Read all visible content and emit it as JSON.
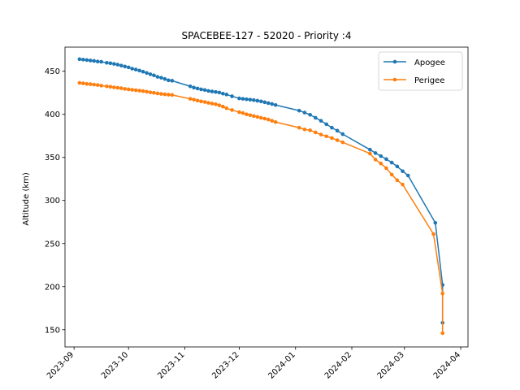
{
  "chart_data": {
    "type": "line",
    "title": "SPACEBEE-127 - 52020 - Priority :4",
    "xlabel": "",
    "ylabel": "Altitude (km)",
    "x_type": "date",
    "xlim": [
      "2023-08-27",
      "2024-04-05"
    ],
    "ylim": [
      130,
      478
    ],
    "x_ticks": [
      "2023-09",
      "2023-10",
      "2023-11",
      "2023-12",
      "2024-01",
      "2024-02",
      "2024-03",
      "2024-04"
    ],
    "y_ticks": [
      150,
      200,
      250,
      300,
      350,
      400,
      450
    ],
    "grid": false,
    "legend_position": "top-right",
    "series": [
      {
        "name": "Apogee",
        "color": "#1f77b4",
        "points": [
          [
            "2023-09-04",
            464
          ],
          [
            "2023-09-06",
            463.5
          ],
          [
            "2023-09-08",
            463
          ],
          [
            "2023-09-10",
            462.5
          ],
          [
            "2023-09-12",
            462
          ],
          [
            "2023-09-14",
            461.3
          ],
          [
            "2023-09-16",
            461
          ],
          [
            "2023-09-19",
            459.8
          ],
          [
            "2023-09-21",
            459.3
          ],
          [
            "2023-09-23",
            458.5
          ],
          [
            "2023-09-25",
            457.7
          ],
          [
            "2023-09-27",
            456.6
          ],
          [
            "2023-09-29",
            455.5
          ],
          [
            "2023-10-01",
            454.5
          ],
          [
            "2023-10-03",
            453
          ],
          [
            "2023-10-05",
            452
          ],
          [
            "2023-10-07",
            450.8
          ],
          [
            "2023-10-09",
            449.5
          ],
          [
            "2023-10-11",
            448
          ],
          [
            "2023-10-13",
            446.5
          ],
          [
            "2023-10-15",
            445.2
          ],
          [
            "2023-10-17",
            443.5
          ],
          [
            "2023-10-19",
            442.5
          ],
          [
            "2023-10-21",
            441
          ],
          [
            "2023-10-23",
            439.5
          ],
          [
            "2023-10-25",
            439
          ],
          [
            "2023-11-04",
            432.5
          ],
          [
            "2023-11-06",
            431
          ],
          [
            "2023-11-08",
            430
          ],
          [
            "2023-11-10",
            429
          ],
          [
            "2023-11-12",
            428.2
          ],
          [
            "2023-11-14",
            427.2
          ],
          [
            "2023-11-16",
            426.5
          ],
          [
            "2023-11-18",
            426
          ],
          [
            "2023-11-20",
            425.3
          ],
          [
            "2023-11-22",
            424
          ],
          [
            "2023-11-24",
            423
          ],
          [
            "2023-11-27",
            421
          ],
          [
            "2023-12-01",
            418.5
          ],
          [
            "2023-12-03",
            418
          ],
          [
            "2023-12-05",
            417.5
          ],
          [
            "2023-12-07",
            417
          ],
          [
            "2023-12-09",
            416.5
          ],
          [
            "2023-12-11",
            415.8
          ],
          [
            "2023-12-13",
            415
          ],
          [
            "2023-12-15",
            414
          ],
          [
            "2023-12-17",
            413
          ],
          [
            "2023-12-19",
            412
          ],
          [
            "2023-12-21",
            410.8
          ],
          [
            "2024-01-03",
            404.3
          ],
          [
            "2024-01-06",
            402
          ],
          [
            "2024-01-09",
            399.5
          ],
          [
            "2024-01-12",
            396
          ],
          [
            "2024-01-15",
            392.5
          ],
          [
            "2024-01-18",
            388.5
          ],
          [
            "2024-01-21",
            384.5
          ],
          [
            "2024-01-24",
            381
          ],
          [
            "2024-01-27",
            377
          ],
          [
            "2024-02-11",
            359
          ],
          [
            "2024-02-14",
            355
          ],
          [
            "2024-02-17",
            351.5
          ],
          [
            "2024-02-20",
            348
          ],
          [
            "2024-02-23",
            344
          ],
          [
            "2024-02-26",
            339.5
          ],
          [
            "2024-02-29",
            334
          ],
          [
            "2024-03-03",
            329
          ],
          [
            "2024-03-18",
            274
          ],
          [
            "2024-03-22",
            202
          ],
          [
            "2024-03-22",
            158
          ]
        ]
      },
      {
        "name": "Perigee",
        "color": "#ff7f0e",
        "points": [
          [
            "2023-09-04",
            436.5
          ],
          [
            "2023-09-06",
            436
          ],
          [
            "2023-09-08",
            435.3
          ],
          [
            "2023-09-10",
            435
          ],
          [
            "2023-09-12",
            434.5
          ],
          [
            "2023-09-14",
            434
          ],
          [
            "2023-09-16",
            433.3
          ],
          [
            "2023-09-19",
            432.5
          ],
          [
            "2023-09-21",
            432
          ],
          [
            "2023-09-23",
            431.3
          ],
          [
            "2023-09-25",
            430.8
          ],
          [
            "2023-09-27",
            430.3
          ],
          [
            "2023-09-29",
            429.5
          ],
          [
            "2023-10-01",
            429
          ],
          [
            "2023-10-03",
            428.5
          ],
          [
            "2023-10-05",
            428
          ],
          [
            "2023-10-07",
            427.5
          ],
          [
            "2023-10-09",
            427
          ],
          [
            "2023-10-11",
            426.3
          ],
          [
            "2023-10-13",
            425.5
          ],
          [
            "2023-10-15",
            425
          ],
          [
            "2023-10-17",
            424.3
          ],
          [
            "2023-10-19",
            423.7
          ],
          [
            "2023-10-21",
            423.2
          ],
          [
            "2023-10-23",
            422.8
          ],
          [
            "2023-10-25",
            422.5
          ],
          [
            "2023-11-04",
            418
          ],
          [
            "2023-11-06",
            417
          ],
          [
            "2023-11-08",
            416
          ],
          [
            "2023-11-10",
            415
          ],
          [
            "2023-11-12",
            414.3
          ],
          [
            "2023-11-14",
            413.3
          ],
          [
            "2023-11-16",
            412.5
          ],
          [
            "2023-11-18",
            411.7
          ],
          [
            "2023-11-20",
            410.5
          ],
          [
            "2023-11-22",
            409
          ],
          [
            "2023-11-24",
            407
          ],
          [
            "2023-11-27",
            405
          ],
          [
            "2023-12-01",
            402.5
          ],
          [
            "2023-12-03",
            401.5
          ],
          [
            "2023-12-05",
            400
          ],
          [
            "2023-12-07",
            399
          ],
          [
            "2023-12-09",
            398
          ],
          [
            "2023-12-11",
            397
          ],
          [
            "2023-12-13",
            396
          ],
          [
            "2023-12-15",
            395
          ],
          [
            "2023-12-17",
            394
          ],
          [
            "2023-12-19",
            392.5
          ],
          [
            "2023-12-21",
            391
          ],
          [
            "2024-01-03",
            384.5
          ],
          [
            "2024-01-06",
            382.5
          ],
          [
            "2024-01-09",
            381.5
          ],
          [
            "2024-01-12",
            379
          ],
          [
            "2024-01-15",
            376.5
          ],
          [
            "2024-01-18",
            374.5
          ],
          [
            "2024-01-21",
            372.5
          ],
          [
            "2024-01-24",
            370
          ],
          [
            "2024-01-27",
            367.5
          ],
          [
            "2024-02-11",
            354.5
          ],
          [
            "2024-02-14",
            347.5
          ],
          [
            "2024-02-17",
            343
          ],
          [
            "2024-02-20",
            337.5
          ],
          [
            "2024-02-23",
            330
          ],
          [
            "2024-02-26",
            323.5
          ],
          [
            "2024-02-29",
            318.5
          ],
          [
            "2024-03-17",
            261
          ],
          [
            "2024-03-22",
            192
          ],
          [
            "2024-03-22",
            146
          ]
        ]
      }
    ]
  }
}
